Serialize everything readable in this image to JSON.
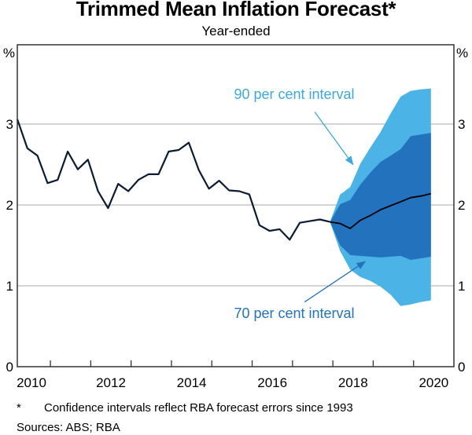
{
  "header": {
    "title": "Trimmed Mean Inflation Forecast*",
    "subtitle": "Year-ended"
  },
  "footnotes": {
    "asterisk": "*",
    "note": "Confidence intervals reflect RBA forecast errors since 1993",
    "sources": "Sources: ABS; RBA"
  },
  "colors": {
    "ci90": "#4BB3E6",
    "ci70": "#2272BD",
    "line": "#0A1B33",
    "ann90_text": "#3DA8E0",
    "ann70_text": "#2372BA",
    "grid": "#A8A8A8",
    "axis": "#333333"
  },
  "chart_data": {
    "type": "area",
    "title": "Trimmed Mean Inflation Forecast*",
    "subtitle": "Year-ended",
    "xlabel": "",
    "ylabel": "%",
    "ylabel_right": "%",
    "xlim": [
      2010.18,
      2021.0
    ],
    "ylim": [
      0,
      4
    ],
    "yticks": [
      0,
      1,
      2,
      3
    ],
    "ytick_labels": [
      "0",
      "1",
      "2",
      "3"
    ],
    "xtick_years": [
      2011,
      2012,
      2013,
      2014,
      2015,
      2016,
      2017,
      2018,
      2019,
      2020
    ],
    "xtick_labels": [
      {
        "label": "2010",
        "year": 2010
      },
      {
        "label": "2012",
        "year": 2012
      },
      {
        "label": "2014",
        "year": 2014
      },
      {
        "label": "2016",
        "year": 2016
      },
      {
        "label": "2018",
        "year": 2018
      },
      {
        "label": "2020",
        "year": 2020
      }
    ],
    "grid": true,
    "actual": {
      "name": "Trimmed mean inflation",
      "start": 2010.18,
      "step": 0.25,
      "values": [
        3.06,
        2.7,
        2.61,
        2.27,
        2.31,
        2.66,
        2.44,
        2.56,
        2.17,
        1.96,
        2.26,
        2.17,
        2.31,
        2.38,
        2.38,
        2.66,
        2.68,
        2.77,
        2.43,
        2.2,
        2.3,
        2.18,
        2.17,
        2.13,
        1.75,
        1.68,
        1.7,
        1.57,
        1.78,
        1.8,
        1.82,
        1.79
      ]
    },
    "forecast": {
      "start": 2017.93,
      "step": 0.25,
      "central": [
        1.79,
        1.77,
        1.71,
        1.81,
        1.87,
        1.94,
        1.99,
        2.04,
        2.09,
        2.11,
        2.14
      ],
      "ci90_upper": [
        1.79,
        2.13,
        2.22,
        2.51,
        2.71,
        2.9,
        3.13,
        3.34,
        3.41,
        3.43,
        3.44
      ],
      "ci90_lower": [
        1.79,
        1.43,
        1.2,
        1.11,
        1.06,
        0.99,
        0.89,
        0.75,
        0.77,
        0.8,
        0.82
      ],
      "ci70_upper": [
        1.79,
        2.01,
        2.06,
        2.25,
        2.4,
        2.53,
        2.61,
        2.69,
        2.85,
        2.87,
        2.89
      ],
      "ci70_lower": [
        1.79,
        1.5,
        1.38,
        1.37,
        1.36,
        1.35,
        1.36,
        1.37,
        1.32,
        1.34,
        1.36
      ]
    },
    "annotations": [
      {
        "id": "ci90",
        "text": "90 per cent interval",
        "label_at": [
          2015.55,
          3.31
        ],
        "arrow_from": [
          2017.55,
          3.15
        ],
        "arrow_to": [
          2018.5,
          2.5
        ]
      },
      {
        "id": "ci70",
        "text": "70 per cent interval",
        "label_at": [
          2015.55,
          0.6
        ],
        "arrow_from": [
          2017.3,
          0.8
        ],
        "arrow_to": [
          2018.8,
          1.3
        ]
      }
    ]
  }
}
